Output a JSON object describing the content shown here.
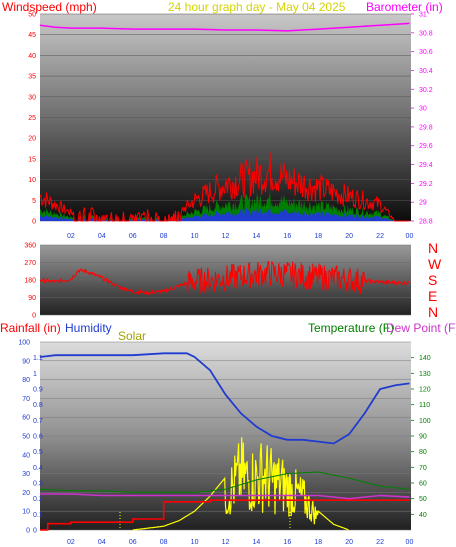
{
  "colors": {
    "wind": "#ff0000",
    "barometer": "#ff00ff",
    "title": "#d4d400",
    "humidity": "#1f3bd0",
    "solar": "#ffff00",
    "temperature": "#008000",
    "dewpoint": "#cc33cc",
    "rainfall": "#ff0000",
    "gust_fill": "#008000",
    "avg_fill": "#1f3bd0",
    "axis_left_top": "#ff0000",
    "axis_right_top": "#ff00ff",
    "axis_left_bottom": "#1f3bd0",
    "axis_right_bottom": "#008000"
  },
  "labels": {
    "windspeed_title": "Windspeed (mph)",
    "main_title": "24 hour graph day - May 04 2025",
    "barometer_title": "Barometer (in)",
    "rainfall_title": "Rainfall (in)",
    "humidity_title": "Humidity",
    "solar_title": "Solar",
    "temperature_title": "Temperature (F)",
    "dewpoint_title": "Dew Point (F)",
    "compass": [
      "N",
      "W",
      "S",
      "E",
      "N"
    ]
  },
  "chart_data": [
    {
      "type": "line",
      "title": "Windspeed / Barometer",
      "x_ticks": [
        "02",
        "04",
        "06",
        "08",
        "10",
        "12",
        "14",
        "16",
        "18",
        "20",
        "22",
        "00"
      ],
      "y_left": {
        "label": "Windspeed (mph)",
        "ticks": [
          0,
          5,
          10,
          15,
          20,
          25,
          30,
          35,
          40,
          45,
          50
        ],
        "range": [
          0,
          50
        ]
      },
      "y_right": {
        "label": "Barometer (in)",
        "ticks": [
          "28.8",
          "29",
          "29.2",
          "29.4",
          "29.6",
          "29.8",
          "30",
          "30.2",
          "30.4",
          "30.6",
          "30.8",
          "31"
        ],
        "range": [
          28.8,
          31.0
        ]
      },
      "series": [
        {
          "name": "Barometer (in)",
          "axis": "right",
          "x": [
            0,
            1,
            2,
            4,
            6,
            8,
            10,
            12,
            14,
            16,
            18,
            20,
            22,
            23.9
          ],
          "y": [
            30.88,
            30.86,
            30.85,
            30.85,
            30.84,
            30.84,
            30.84,
            30.83,
            30.83,
            30.82,
            30.84,
            30.86,
            30.88,
            30.9
          ]
        },
        {
          "name": "Windspeed (mph)",
          "axis": "left",
          "x": [
            0,
            1,
            2,
            3,
            4,
            5,
            6,
            7,
            8,
            9,
            10,
            11,
            12,
            13,
            14,
            15,
            16,
            17,
            18,
            19,
            20,
            21,
            22,
            23,
            23.9
          ],
          "y": [
            6,
            4,
            2,
            3,
            1,
            2,
            1,
            2,
            1,
            2,
            5,
            7,
            9,
            10,
            11,
            12,
            10,
            9,
            8,
            7,
            6,
            5,
            4,
            0,
            0
          ]
        }
      ]
    },
    {
      "type": "scatter",
      "title": "Wind Direction",
      "x_ticks": [
        "02",
        "04",
        "06",
        "08",
        "10",
        "12",
        "14",
        "16",
        "18",
        "20",
        "22",
        "00"
      ],
      "y_left": {
        "ticks": [
          0,
          90,
          180,
          270,
          360
        ],
        "range": [
          0,
          360
        ]
      },
      "series": [
        {
          "name": "Direction",
          "x": [
            0,
            1,
            2,
            2.5,
            3,
            4,
            5,
            6,
            7,
            8,
            9,
            10,
            11,
            12,
            13,
            14,
            15,
            16,
            17,
            18,
            19,
            20,
            21,
            22,
            23,
            23.9
          ],
          "y": [
            180,
            170,
            185,
            230,
            225,
            190,
            150,
            120,
            115,
            120,
            150,
            175,
            180,
            190,
            200,
            210,
            215,
            210,
            200,
            195,
            190,
            180,
            175,
            170,
            165,
            165
          ]
        }
      ]
    },
    {
      "type": "line",
      "title": "Rainfall / Humidity / Solar / Temperature / Dew Point",
      "x_ticks": [
        "02",
        "04",
        "06",
        "08",
        "10",
        "12",
        "14",
        "16",
        "18",
        "20",
        "22",
        "00"
      ],
      "y_left_outer": {
        "label": "Rainfall (in)",
        "ticks": [
          "0",
          "0.1",
          "0.2",
          "0.3",
          "0.4",
          "0.5",
          "0.6",
          "0.7",
          "0.8",
          "0.9",
          "1",
          "1.1"
        ],
        "range": [
          0,
          1.2
        ]
      },
      "y_left": {
        "label": "Humidity",
        "ticks": [
          0,
          10,
          20,
          30,
          40,
          50,
          60,
          70,
          80,
          90,
          100
        ],
        "range": [
          0,
          100
        ]
      },
      "y_right": {
        "label": "Temperature (F)",
        "ticks": [
          40,
          50,
          60,
          70,
          80,
          90,
          100,
          110,
          120,
          130,
          140
        ],
        "range": [
          30,
          150
        ]
      },
      "series": [
        {
          "name": "Humidity",
          "axis": "left",
          "x": [
            0,
            1,
            2,
            4,
            6,
            8,
            9.5,
            10,
            11,
            12,
            13,
            14,
            15,
            16,
            17,
            18,
            19,
            20,
            21,
            22,
            23,
            23.9
          ],
          "y": [
            92,
            93,
            93,
            93,
            93,
            94,
            94,
            92,
            85,
            72,
            62,
            55,
            50,
            48,
            48,
            47,
            46,
            51,
            62,
            75,
            77,
            78
          ]
        },
        {
          "name": "Temperature (F)",
          "axis": "right",
          "x": [
            0,
            2,
            4,
            6,
            8,
            10,
            12,
            14,
            16,
            18,
            20,
            22,
            23.9
          ],
          "y": [
            56,
            55,
            55,
            54,
            54,
            54,
            56,
            62,
            66,
            67,
            63,
            58,
            56
          ]
        },
        {
          "name": "Dew Point (F)",
          "axis": "right",
          "x": [
            0,
            2,
            4,
            6,
            8,
            10,
            12,
            14,
            16,
            18,
            20,
            22,
            23.9
          ],
          "y": [
            53,
            53,
            52,
            52,
            52,
            52,
            52,
            52,
            52,
            52,
            50,
            52,
            51
          ]
        },
        {
          "name": "Rainfall (in)",
          "axis": "left_outer",
          "x": [
            0,
            0.5,
            2,
            4,
            6,
            7.5,
            8,
            9,
            11,
            14,
            18,
            20,
            22,
            23.9
          ],
          "y": [
            0.0,
            0.04,
            0.05,
            0.05,
            0.07,
            0.07,
            0.18,
            0.18,
            0.19,
            0.19,
            0.19,
            0.19,
            0.19,
            0.19
          ]
        },
        {
          "name": "Solar",
          "axis": "left",
          "x": [
            0,
            6,
            7,
            8,
            9,
            10,
            11,
            12,
            12.5,
            13,
            13.5,
            14,
            14.5,
            15,
            15.5,
            16,
            16.5,
            17,
            18,
            19,
            20,
            23.9
          ],
          "y": [
            0,
            0,
            1,
            2,
            5,
            10,
            18,
            28,
            36,
            46,
            40,
            42,
            46,
            40,
            38,
            34,
            30,
            26,
            10,
            3,
            0,
            0
          ]
        }
      ]
    }
  ]
}
